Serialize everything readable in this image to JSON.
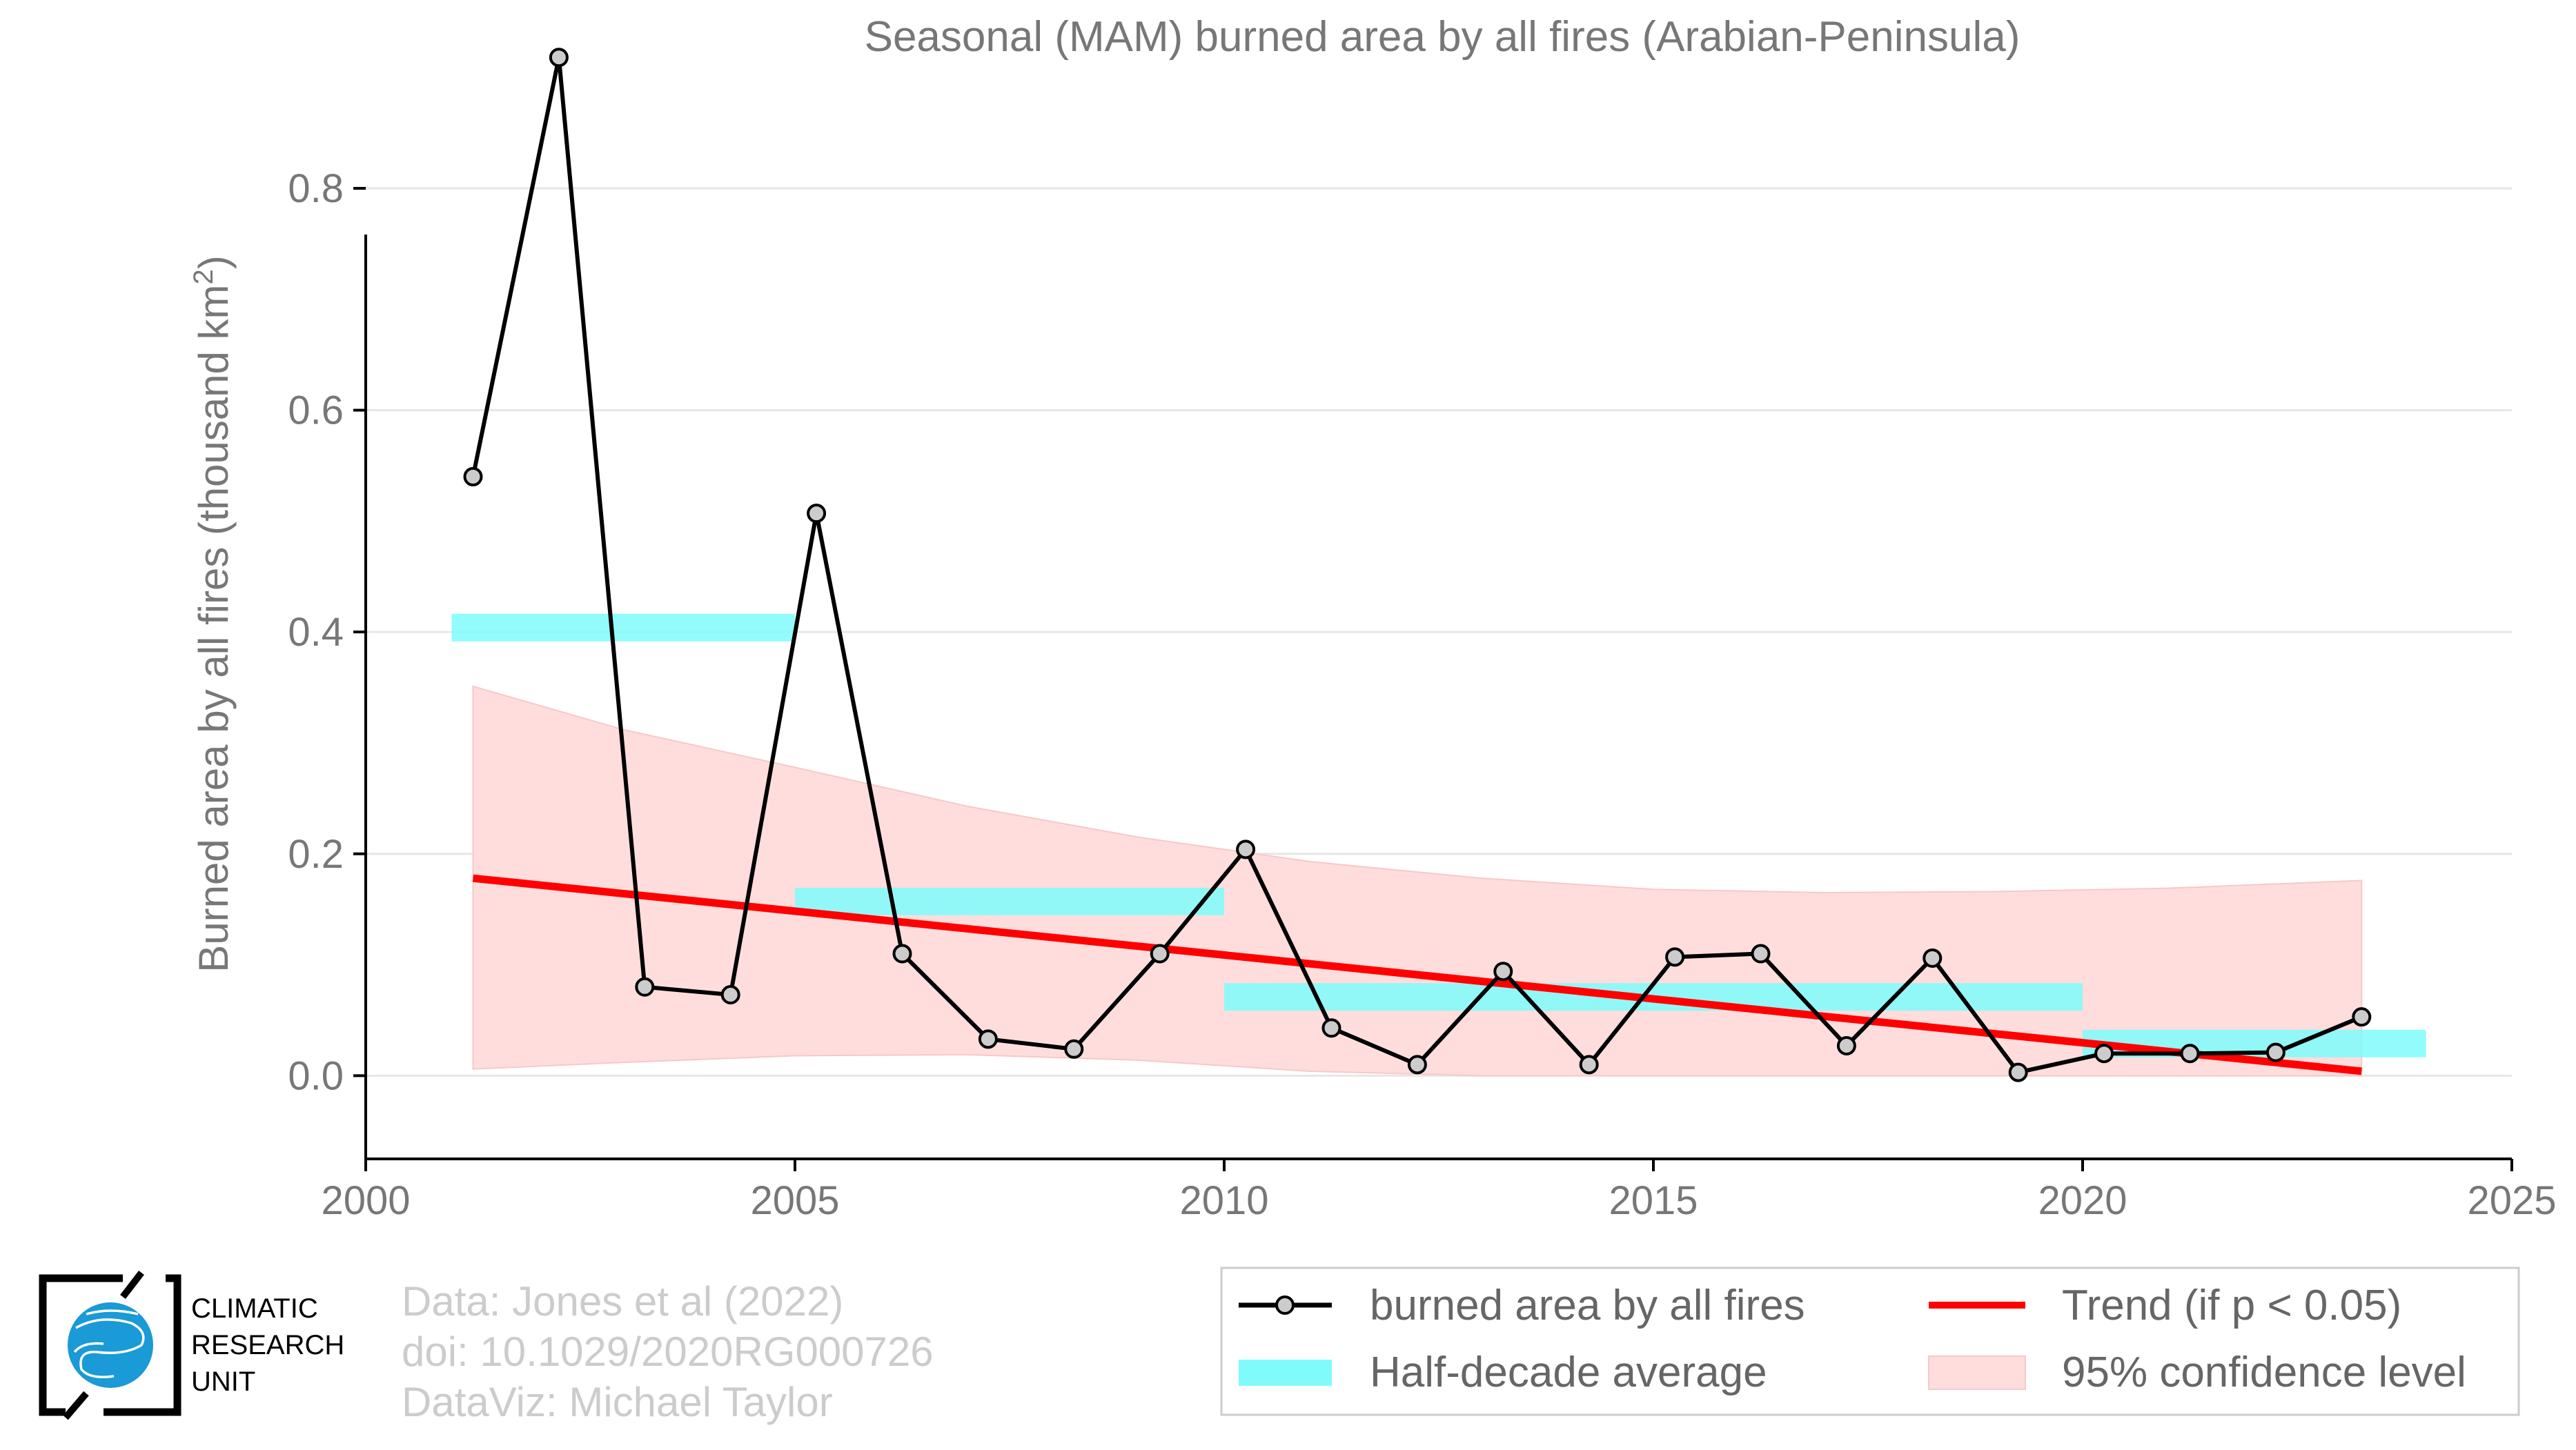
{
  "chart_data": {
    "type": "line",
    "title": "Seasonal (MAM) burned area by all fires (Arabian-Peninsula)",
    "xlabel": "",
    "ylabel": "Burned area by all fires (thousand km",
    "ylabel_sup": "2",
    "ylabel_tail": ")",
    "xlim": [
      2000,
      2025
    ],
    "ylim": [
      -0.075,
      0.92
    ],
    "x_ticks": [
      2000,
      2005,
      2010,
      2015,
      2020,
      2025
    ],
    "x_tick_labels": [
      "2000",
      "2005",
      "2010",
      "2015",
      "2020",
      "2025"
    ],
    "y_ticks": [
      0.0,
      0.2,
      0.4,
      0.6,
      0.8
    ],
    "y_tick_labels": [
      "0.0",
      "0.2",
      "0.4",
      "0.6",
      "0.8"
    ],
    "grid": "horizontal",
    "legend_position": "bottom-right",
    "series": [
      {
        "name": "burned area by all fires",
        "color": "#000000",
        "marker_fill": "#cccccc",
        "x": [
          2001.25,
          2002.25,
          2003.25,
          2004.25,
          2005.25,
          2006.25,
          2007.25,
          2008.25,
          2009.25,
          2010.25,
          2011.25,
          2012.25,
          2013.25,
          2014.25,
          2015.25,
          2016.25,
          2017.25,
          2018.25,
          2019.25,
          2020.25,
          2021.25,
          2022.25,
          2023.25
        ],
        "y": [
          0.54,
          0.918,
          0.08,
          0.073,
          0.507,
          0.11,
          0.033,
          0.024,
          0.11,
          0.204,
          0.043,
          0.01,
          0.094,
          0.01,
          0.107,
          0.11,
          0.027,
          0.106,
          0.003,
          0.02,
          0.02,
          0.021,
          0.053
        ]
      }
    ],
    "half_decade_average": {
      "name": "Half-decade average",
      "color": "#7ffbfb",
      "segments": [
        {
          "x0": 2001,
          "x1": 2005,
          "y": 0.404
        },
        {
          "x0": 2005,
          "x1": 2010,
          "y": 0.157
        },
        {
          "x0": 2010,
          "x1": 2020,
          "y": 0.071
        },
        {
          "x0": 2020,
          "x1": 2024,
          "y": 0.029
        }
      ]
    },
    "trend": {
      "name": "Trend (if p < 0.05)",
      "color": "#ff0000",
      "x": [
        2001.25,
        2023.25
      ],
      "y": [
        0.178,
        0.004
      ]
    },
    "confidence": {
      "name": "95% confidence level",
      "color": "#ffdddd",
      "x": [
        2001.25,
        2003,
        2005,
        2007,
        2009,
        2011,
        2013,
        2015,
        2017,
        2019,
        2021,
        2023.25
      ],
      "upper": [
        0.351,
        0.312,
        0.278,
        0.243,
        0.215,
        0.193,
        0.178,
        0.168,
        0.165,
        0.166,
        0.169,
        0.176
      ],
      "lower": [
        0.006,
        0.012,
        0.018,
        0.019,
        0.014,
        0.004,
        0.0,
        0.0,
        0.0,
        0.0,
        0.0,
        0.0
      ]
    }
  },
  "credits": {
    "line1": "Data: Jones et al (2022)",
    "line2": "doi: 10.1029/2020RG000726",
    "line3": "DataViz: Michael Taylor"
  },
  "logo": {
    "line1": "CLIMATIC",
    "line2": "RESEARCH",
    "line3": "UNIT",
    "globe_color": "#1a9ad6"
  }
}
